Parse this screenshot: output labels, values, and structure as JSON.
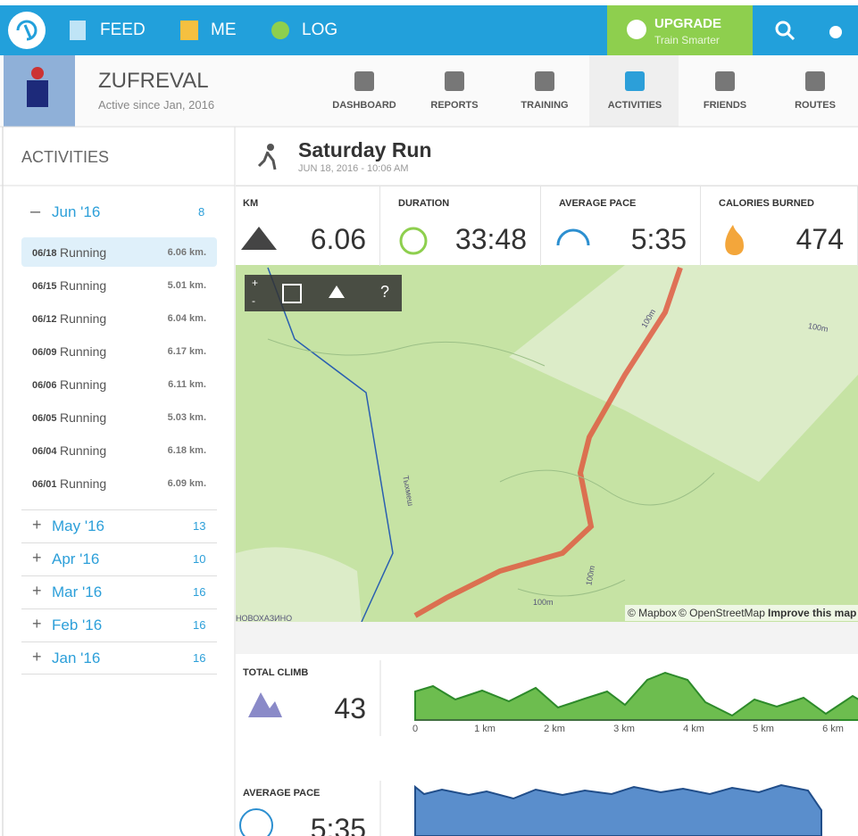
{
  "nav": {
    "feed": "FEED",
    "me": "ME",
    "log": "LOG",
    "upgrade": "UPGRADE",
    "upgrade_sub": "Train Smarter"
  },
  "profile": {
    "name": "ZUFREVAL",
    "since": "Active since Jan, 2016"
  },
  "tabs": [
    "DASHBOARD",
    "REPORTS",
    "TRAINING",
    "ACTIVITIES",
    "FRIENDS",
    "ROUTES"
  ],
  "sidebar": {
    "title": "ACTIVITIES",
    "open_month": {
      "label": "Jun '16",
      "count": 8,
      "activities": [
        {
          "date": "06/18",
          "type": "Running",
          "distance": "6.06 km."
        },
        {
          "date": "06/15",
          "type": "Running",
          "distance": "5.01 km."
        },
        {
          "date": "06/12",
          "type": "Running",
          "distance": "6.04 km."
        },
        {
          "date": "06/09",
          "type": "Running",
          "distance": "6.17 km."
        },
        {
          "date": "06/06",
          "type": "Running",
          "distance": "6.11 km."
        },
        {
          "date": "06/05",
          "type": "Running",
          "distance": "5.03 km."
        },
        {
          "date": "06/04",
          "type": "Running",
          "distance": "6.18 km."
        },
        {
          "date": "06/01",
          "type": "Running",
          "distance": "6.09 km."
        }
      ]
    },
    "months": [
      {
        "label": "May '16",
        "count": 13
      },
      {
        "label": "Apr '16",
        "count": 10
      },
      {
        "label": "Mar '16",
        "count": 16
      },
      {
        "label": "Feb '16",
        "count": 16
      },
      {
        "label": "Jan '16",
        "count": 16
      }
    ]
  },
  "activity": {
    "title": "Saturday Run",
    "date": "JUN 18, 2016 - 10:06 AM",
    "stats": [
      {
        "label": "KM",
        "value": 6.06
      },
      {
        "label": "DURATION",
        "value": "33:48"
      },
      {
        "label": "AVERAGE PACE",
        "value": "5:35"
      },
      {
        "label": "CALORIES BURNED",
        "value": 474
      }
    ]
  },
  "map": {
    "controls": [
      "+",
      "-",
      "?"
    ],
    "labels": [
      "100m",
      "100m",
      "100m",
      "100m",
      "Тыхмеш",
      "НОВОХАЗИНО"
    ],
    "attribution": [
      "© Mapbox",
      "© OpenStreetMap",
      "Improve this map"
    ]
  },
  "charts": [
    {
      "label": "TOTAL CLIMB",
      "value": 43,
      "xticks": [
        "0",
        "1 km",
        "2 km",
        "3 km",
        "4 km",
        "5 km",
        "6 km"
      ]
    },
    {
      "label": "AVERAGE PACE",
      "value": "5:35"
    }
  ]
}
